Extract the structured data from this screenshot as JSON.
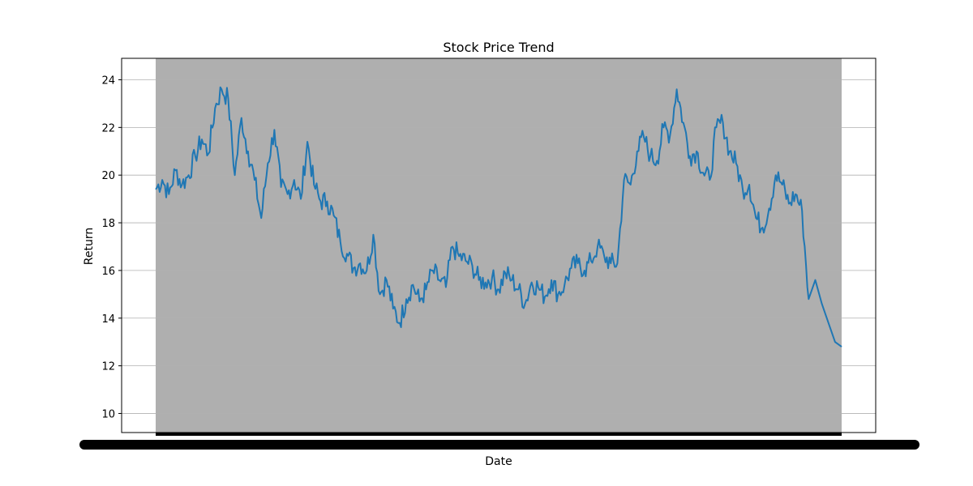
{
  "chart_data": {
    "type": "line",
    "title": "Stock Price Trend",
    "xlabel": "Date",
    "ylabel": "Return",
    "ylim": [
      9.2,
      24.9
    ],
    "yticks": [
      10,
      12,
      14,
      16,
      18,
      20,
      22,
      24
    ],
    "grid": "y",
    "shaded_span": true,
    "colors": {
      "line": "#1f77b4",
      "span": "#afafaf",
      "grid": "#b0b0b0",
      "ticks": "#000000"
    },
    "x_tick_labels": "overlapping, illegible",
    "series": [
      {
        "x_index_range": [
          0,
          520
        ],
        "values_sampled": [
          [
            0,
            19.4
          ],
          [
            5,
            19.8
          ],
          [
            10,
            19.2
          ],
          [
            15,
            20.2
          ],
          [
            20,
            19.6
          ],
          [
            25,
            20.0
          ],
          [
            30,
            20.8
          ],
          [
            35,
            21.5
          ],
          [
            40,
            20.9
          ],
          [
            45,
            22.8
          ],
          [
            50,
            23.6
          ],
          [
            55,
            23.2
          ],
          [
            60,
            20.0
          ],
          [
            65,
            22.4
          ],
          [
            70,
            21.0
          ],
          [
            75,
            19.8
          ],
          [
            80,
            18.2
          ],
          [
            85,
            20.5
          ],
          [
            90,
            21.9
          ],
          [
            95,
            19.5
          ],
          [
            100,
            19.2
          ],
          [
            105,
            19.8
          ],
          [
            110,
            19.0
          ],
          [
            115,
            21.4
          ],
          [
            120,
            19.6
          ],
          [
            125,
            18.9
          ],
          [
            130,
            18.9
          ],
          [
            135,
            18.3
          ],
          [
            140,
            17.2
          ],
          [
            145,
            16.7
          ],
          [
            150,
            16.1
          ],
          [
            155,
            16.3
          ],
          [
            160,
            16.0
          ],
          [
            165,
            17.5
          ],
          [
            170,
            15.0
          ],
          [
            175,
            15.6
          ],
          [
            180,
            14.4
          ],
          [
            185,
            13.8
          ],
          [
            190,
            14.8
          ],
          [
            195,
            15.4
          ],
          [
            200,
            14.7
          ],
          [
            205,
            15.2
          ],
          [
            210,
            16.0
          ],
          [
            215,
            15.6
          ],
          [
            220,
            15.3
          ],
          [
            225,
            17.0
          ],
          [
            230,
            16.6
          ],
          [
            235,
            16.4
          ],
          [
            240,
            16.2
          ],
          [
            245,
            15.6
          ],
          [
            250,
            15.5
          ],
          [
            255,
            15.7
          ],
          [
            260,
            15.2
          ],
          [
            265,
            15.9
          ],
          [
            270,
            15.6
          ],
          [
            275,
            15.2
          ],
          [
            280,
            14.6
          ],
          [
            285,
            15.5
          ],
          [
            290,
            15.3
          ],
          [
            295,
            14.9
          ],
          [
            300,
            15.6
          ],
          [
            305,
            15.0
          ],
          [
            310,
            15.4
          ],
          [
            315,
            16.1
          ],
          [
            320,
            16.3
          ],
          [
            325,
            16.0
          ],
          [
            330,
            16.4
          ],
          [
            335,
            17.0
          ],
          [
            340,
            16.6
          ],
          [
            345,
            16.3
          ],
          [
            350,
            16.3
          ],
          [
            355,
            19.8
          ],
          [
            360,
            19.6
          ],
          [
            365,
            21.0
          ],
          [
            370,
            21.6
          ],
          [
            375,
            20.8
          ],
          [
            380,
            20.6
          ],
          [
            385,
            22.0
          ],
          [
            390,
            21.7
          ],
          [
            395,
            23.6
          ],
          [
            400,
            22.2
          ],
          [
            405,
            20.8
          ],
          [
            410,
            21.0
          ],
          [
            415,
            20.1
          ],
          [
            420,
            19.8
          ],
          [
            425,
            22.0
          ],
          [
            430,
            22.2
          ],
          [
            435,
            21.0
          ],
          [
            440,
            20.5
          ],
          [
            445,
            19.4
          ],
          [
            450,
            19.6
          ],
          [
            455,
            18.2
          ],
          [
            460,
            17.8
          ],
          [
            465,
            18.6
          ],
          [
            470,
            20.0
          ],
          [
            475,
            19.6
          ],
          [
            480,
            18.8
          ],
          [
            485,
            19.2
          ],
          [
            490,
            18.5
          ],
          [
            495,
            14.8
          ]
        ]
      }
    ]
  }
}
